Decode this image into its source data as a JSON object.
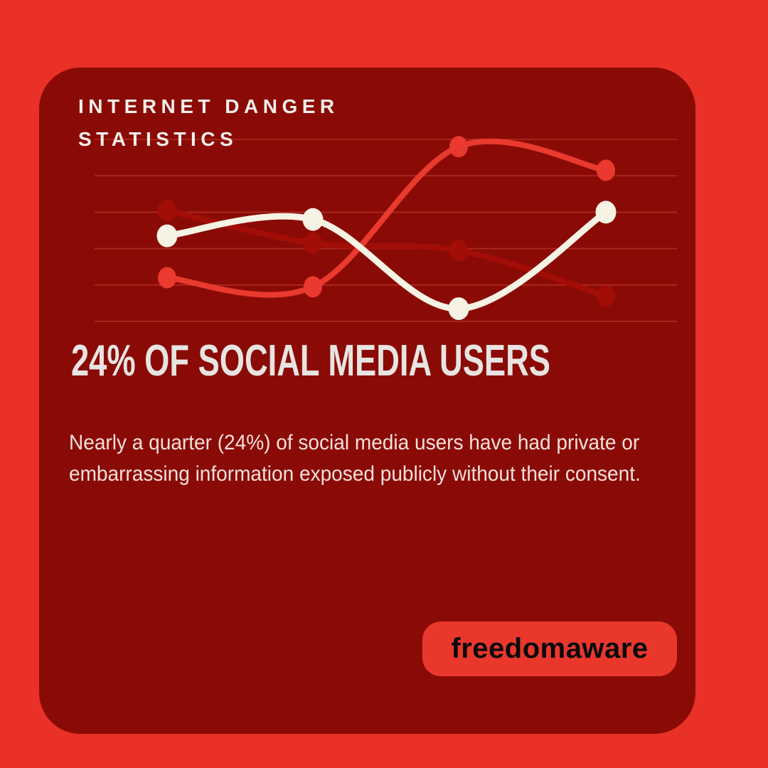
{
  "page": {
    "background_color": "#e93128"
  },
  "card": {
    "background_color": "#8a0b06",
    "title": "INTERNET DANGER STATISTICS",
    "title_color": "#f3eeea",
    "headline": "24% OF SOCIAL MEDIA USERS",
    "headline_color": "#e7e4e1",
    "description": "Nearly a quarter (24%) of social media users have had private or embarrassing information exposed publicly without their consent.",
    "description_color": "#f3dfdb"
  },
  "badge": {
    "label": "freedomaware",
    "background_color": "#ea372c",
    "text_color": "#0a0a0a"
  },
  "chart_data": {
    "type": "line",
    "title": "",
    "xlabel": "",
    "ylabel": "",
    "categories": [
      "",
      "",
      "",
      ""
    ],
    "series": [
      {
        "name": "dark-red-series",
        "color": "#a30d07",
        "values": [
          61,
          43,
          39,
          14
        ]
      },
      {
        "name": "bright-red-series",
        "color": "#ea392e",
        "values": [
          24,
          19,
          96,
          83
        ]
      },
      {
        "name": "cream-series",
        "color": "#f6f2e4",
        "values": [
          47,
          56,
          7,
          60
        ]
      }
    ],
    "ylim": [
      0,
      100
    ],
    "grid": true,
    "gridline_count": 6,
    "gridline_color": "rgba(240,100,80,0.38)",
    "legend_position": "none",
    "axis_tick_labels_visible": false,
    "style_note": "smooth spline lines with round markers, decorative, no axes"
  }
}
